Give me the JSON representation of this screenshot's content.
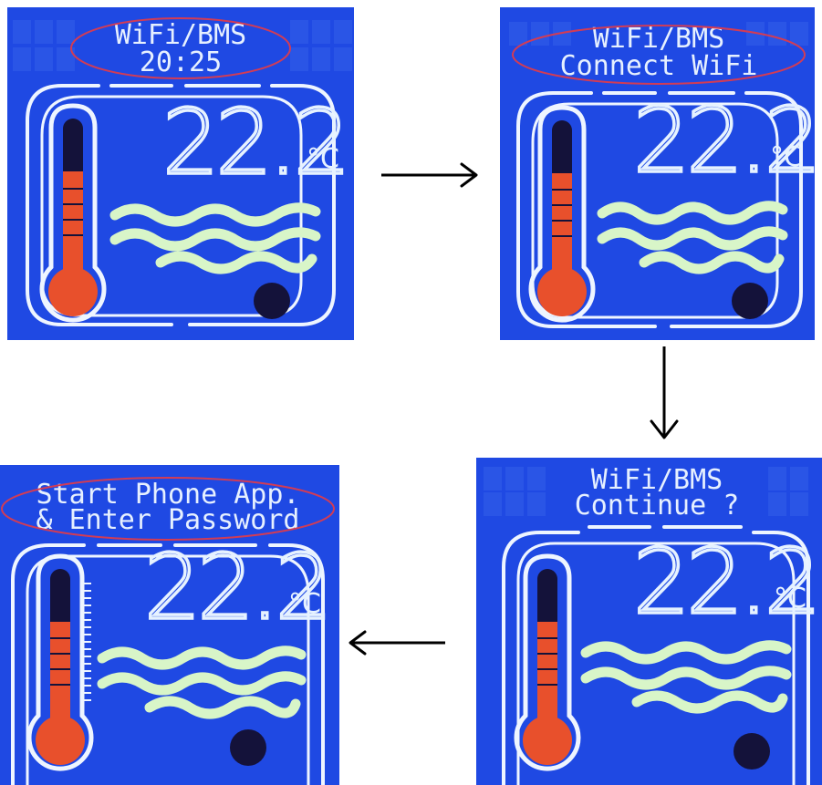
{
  "colors": {
    "screen": "#1f49e3",
    "cell": "#2a55e6",
    "outline": "#eef5ff",
    "waves": "#d8f5c8",
    "mercury": "#e8502c",
    "tube": "#14123a",
    "dot": "#14123a",
    "arrow": "#000000"
  },
  "panels": [
    {
      "id": "p1",
      "line1": "WiFi/BMS",
      "line2": "20:25",
      "temperature": "22.2",
      "unit": "°C"
    },
    {
      "id": "p2",
      "line1": "WiFi/BMS",
      "line2": "Connect WiFi",
      "temperature": "22.2",
      "unit": "°C"
    },
    {
      "id": "p3",
      "line1": "WiFi/BMS",
      "line2": "Continue ?",
      "temperature": "22.2",
      "unit": "°C"
    },
    {
      "id": "p4",
      "line1": "Start Phone App.",
      "line2": "& Enter Password",
      "temperature": "22.2",
      "unit": "°C"
    }
  ],
  "flow": [
    "p1 → p2",
    "p2 → p3",
    "p3 → p4"
  ]
}
